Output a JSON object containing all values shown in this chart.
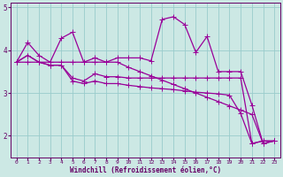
{
  "xlabel": "Windchill (Refroidissement éolien,°C)",
  "background_color": "#cce8e4",
  "line_color": "#990099",
  "grid_color": "#99cccc",
  "axis_color": "#660066",
  "ylim": [
    1.5,
    5.1
  ],
  "xlim": [
    -0.5,
    23.5
  ],
  "xticks": [
    0,
    1,
    2,
    3,
    4,
    5,
    6,
    7,
    8,
    9,
    10,
    11,
    12,
    13,
    14,
    15,
    16,
    17,
    18,
    19,
    20,
    21,
    22,
    23
  ],
  "yticks": [
    2,
    3,
    4,
    5
  ],
  "series": {
    "wavy": [
      3.72,
      4.18,
      3.88,
      3.72,
      4.28,
      4.42,
      3.72,
      3.82,
      3.72,
      3.82,
      3.82,
      3.82,
      3.75,
      4.72,
      4.78,
      4.6,
      3.95,
      4.32,
      3.5,
      3.5,
      3.5,
      2.72,
      1.82,
      1.88
    ],
    "straight": [
      3.72,
      3.72,
      3.72,
      3.72,
      3.72,
      3.72,
      3.72,
      3.72,
      3.72,
      3.72,
      3.6,
      3.5,
      3.4,
      3.3,
      3.2,
      3.1,
      3.0,
      2.9,
      2.8,
      2.7,
      2.6,
      2.5,
      1.82,
      1.88
    ],
    "mid1": [
      3.72,
      3.88,
      3.72,
      3.65,
      3.65,
      3.35,
      3.28,
      3.45,
      3.38,
      3.38,
      3.35,
      3.35,
      3.35,
      3.35,
      3.35,
      3.35,
      3.35,
      3.35,
      3.35,
      3.35,
      3.35,
      1.82,
      1.88,
      1.88
    ],
    "mid2": [
      3.72,
      3.88,
      3.72,
      3.65,
      3.65,
      3.28,
      3.22,
      3.28,
      3.22,
      3.22,
      3.18,
      3.15,
      3.12,
      3.1,
      3.08,
      3.05,
      3.02,
      3.0,
      2.98,
      2.95,
      2.52,
      1.82,
      1.88,
      1.88
    ]
  },
  "marker_size": 2.5,
  "line_width": 0.9
}
